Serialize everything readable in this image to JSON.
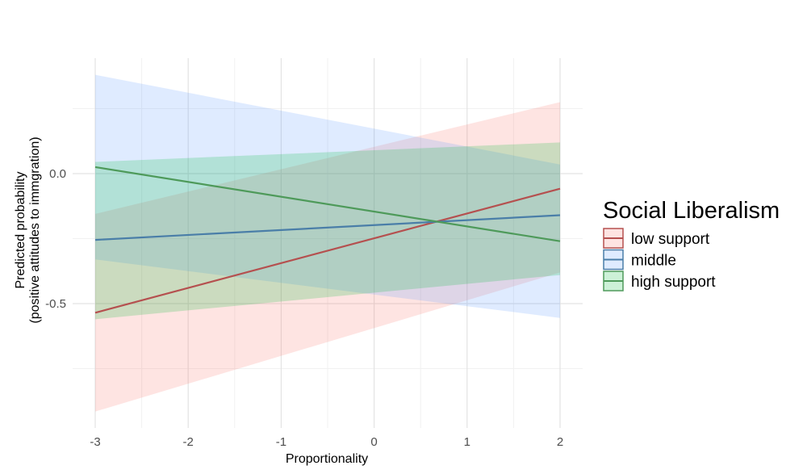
{
  "chart_data": {
    "type": "line",
    "title": "",
    "xlabel": "Proportionality",
    "ylabel_lines": [
      "Predicted probability",
      "(positive attitudes to immgration)"
    ],
    "xlim": [
      -3.0,
      2.0
    ],
    "ylim": [
      -0.98,
      0.43
    ],
    "x_ticks": [
      -3,
      -2,
      -1,
      0,
      1,
      2
    ],
    "x_tick_labels": [
      "-3",
      "-2",
      "-1",
      "0",
      "1",
      "2"
    ],
    "y_ticks": [
      0.0,
      -0.5
    ],
    "y_tick_labels": [
      "0.0",
      "-0.5"
    ],
    "x_minor_grid": [
      -2.5,
      -1.5,
      -0.5,
      0.5,
      1.5
    ],
    "y_minor_grid": [
      0.25,
      -0.25,
      -0.75
    ],
    "grid": true,
    "legend": {
      "title": "Social Liberalism",
      "position": "right"
    },
    "series": [
      {
        "name": "low support",
        "color": "#b5504f",
        "fill": "#f8766d",
        "x": [
          -3,
          2
        ],
        "values": [
          -0.535,
          -0.058
        ],
        "lower": [
          -0.915,
          -0.38
        ],
        "upper": [
          -0.155,
          0.275
        ]
      },
      {
        "name": "middle",
        "color": "#4a7ea8",
        "fill": "#619cff",
        "x": [
          -3,
          2
        ],
        "values": [
          -0.255,
          -0.16
        ],
        "lower": [
          -0.33,
          -0.555
        ],
        "upper": [
          0.38,
          0.035
        ]
      },
      {
        "name": "high support",
        "color": "#4e9a5a",
        "fill": "#00ba38",
        "x": [
          -3,
          2
        ],
        "values": [
          0.025,
          -0.26
        ],
        "lower": [
          -0.56,
          -0.39
        ],
        "upper": [
          0.045,
          0.12
        ]
      }
    ]
  }
}
